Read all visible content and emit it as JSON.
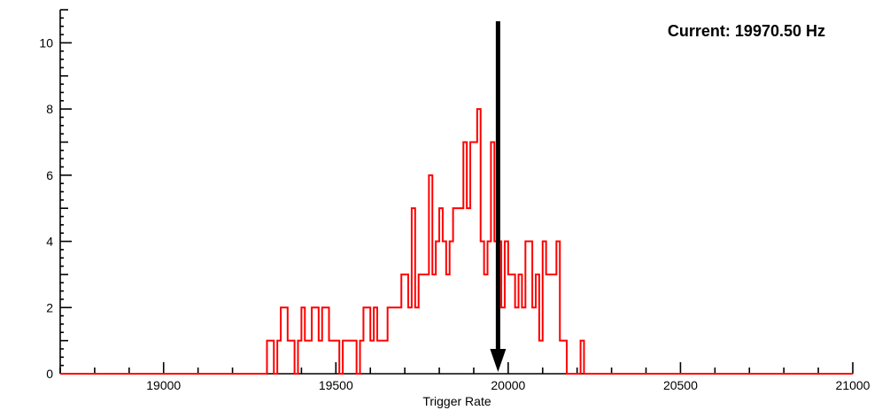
{
  "annotation": {
    "current_label": "Current: 19970.50 Hz"
  },
  "chart_data": {
    "type": "bar",
    "subtype": "step-histogram",
    "title": "",
    "xlabel": "Trigger Rate",
    "ylabel": "",
    "xlim": [
      18700,
      21000
    ],
    "ylim": [
      0,
      11
    ],
    "x_major_ticks": [
      19000,
      19500,
      20000,
      20500,
      21000
    ],
    "x_minor_tick_step": 100,
    "y_major_ticks": [
      0,
      2,
      4,
      6,
      8,
      10
    ],
    "y_minor_tick_step": 0.25,
    "grid": false,
    "legend": "none",
    "series_color": "#ff0000",
    "bin_width": 10,
    "bins_start": 19300,
    "counts": [
      1,
      1,
      0,
      1,
      2,
      2,
      1,
      1,
      0,
      1,
      2,
      1,
      1,
      2,
      2,
      1,
      2,
      2,
      1,
      1,
      1,
      0,
      1,
      1,
      1,
      1,
      0,
      1,
      2,
      2,
      1,
      2,
      1,
      1,
      1,
      2,
      2,
      2,
      2,
      3,
      3,
      2,
      5,
      2,
      3,
      3,
      3,
      6,
      3,
      4,
      5,
      4,
      3,
      4,
      5,
      5,
      5,
      7,
      5,
      7,
      7,
      8,
      4,
      3,
      4,
      7,
      4,
      4,
      2,
      4,
      3,
      3,
      2,
      3,
      2,
      4,
      4,
      2,
      3,
      1,
      4,
      3,
      3,
      3,
      4,
      1,
      1,
      0,
      0,
      0,
      0,
      1,
      0
    ],
    "marker": {
      "type": "down-arrow",
      "x": 19970.5,
      "color": "#000000"
    }
  }
}
